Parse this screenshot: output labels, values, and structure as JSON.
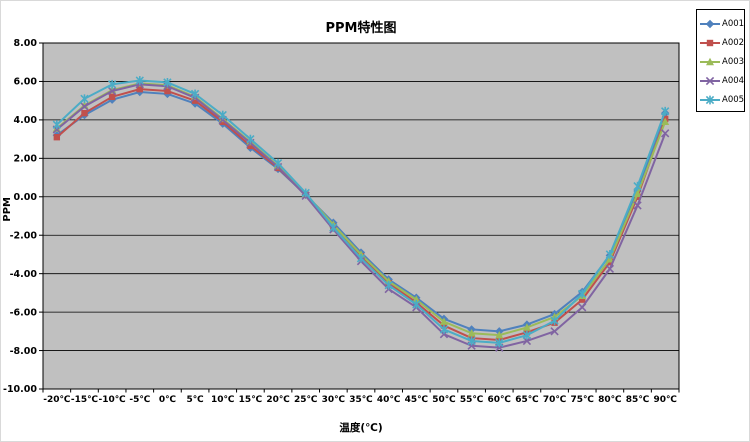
{
  "chart_data": {
    "type": "line",
    "title": "PPM特性图",
    "xlabel": "温度(℃)",
    "ylabel": "PPM",
    "ylim": [
      -10,
      8
    ],
    "ytick_step": 2,
    "ytick_labels": [
      "8.00",
      "6.00",
      "4.00",
      "2.00",
      "0.00",
      "-2.00",
      "-4.00",
      "-6.00",
      "-8.00",
      "-10.00"
    ],
    "categories": [
      "-20℃",
      "-15℃",
      "-10℃",
      "-5℃",
      "0℃",
      "5℃",
      "10℃",
      "15℃",
      "20℃",
      "25℃",
      "30℃",
      "35℃",
      "40℃",
      "45℃",
      "50℃",
      "55℃",
      "60℃",
      "65℃",
      "70℃",
      "75℃",
      "80℃",
      "85℃",
      "90℃"
    ],
    "grid": true,
    "legend_position": "top-right",
    "plot_bg_color": "#c0c0c0",
    "gridline_color": "#000000",
    "series": [
      {
        "name": "A001",
        "color": "#4f81bd",
        "marker": "diamond",
        "values": [
          3.2,
          4.25,
          5.05,
          5.45,
          5.35,
          4.85,
          3.8,
          2.55,
          1.45,
          0.1,
          -1.35,
          -2.9,
          -4.3,
          -5.25,
          -6.35,
          -6.9,
          -7.0,
          -6.65,
          -6.1,
          -4.95,
          -3.05,
          0.3,
          4.35
        ]
      },
      {
        "name": "A002",
        "color": "#c0504d",
        "marker": "square",
        "values": [
          3.1,
          4.35,
          5.2,
          5.6,
          5.5,
          5.0,
          3.9,
          2.65,
          1.5,
          0.1,
          -1.55,
          -3.1,
          -4.5,
          -5.5,
          -6.7,
          -7.35,
          -7.45,
          -7.05,
          -6.55,
          -5.35,
          -3.4,
          0.0,
          4.05
        ]
      },
      {
        "name": "A003",
        "color": "#9bbb59",
        "marker": "triangle",
        "values": [
          3.55,
          4.75,
          5.55,
          5.9,
          5.8,
          5.2,
          4.05,
          2.85,
          1.6,
          0.15,
          -1.45,
          -3.0,
          -4.4,
          -5.35,
          -6.5,
          -7.1,
          -7.2,
          -6.8,
          -6.25,
          -5.15,
          -3.25,
          0.15,
          3.9
        ]
      },
      {
        "name": "A004",
        "color": "#8064a2",
        "marker": "x",
        "values": [
          3.5,
          4.7,
          5.5,
          5.85,
          5.75,
          5.15,
          4.0,
          2.8,
          1.55,
          0.05,
          -1.7,
          -3.35,
          -4.8,
          -5.75,
          -7.15,
          -7.75,
          -7.85,
          -7.5,
          -7.0,
          -5.75,
          -3.75,
          -0.45,
          3.3
        ]
      },
      {
        "name": "A005",
        "color": "#4bacc6",
        "marker": "asterisk",
        "values": [
          3.75,
          5.1,
          5.85,
          6.05,
          5.95,
          5.35,
          4.25,
          3.0,
          1.75,
          0.2,
          -1.6,
          -3.2,
          -4.6,
          -5.6,
          -6.9,
          -7.5,
          -7.6,
          -7.2,
          -6.45,
          -5.05,
          -3.0,
          0.55,
          4.45
        ]
      }
    ]
  }
}
